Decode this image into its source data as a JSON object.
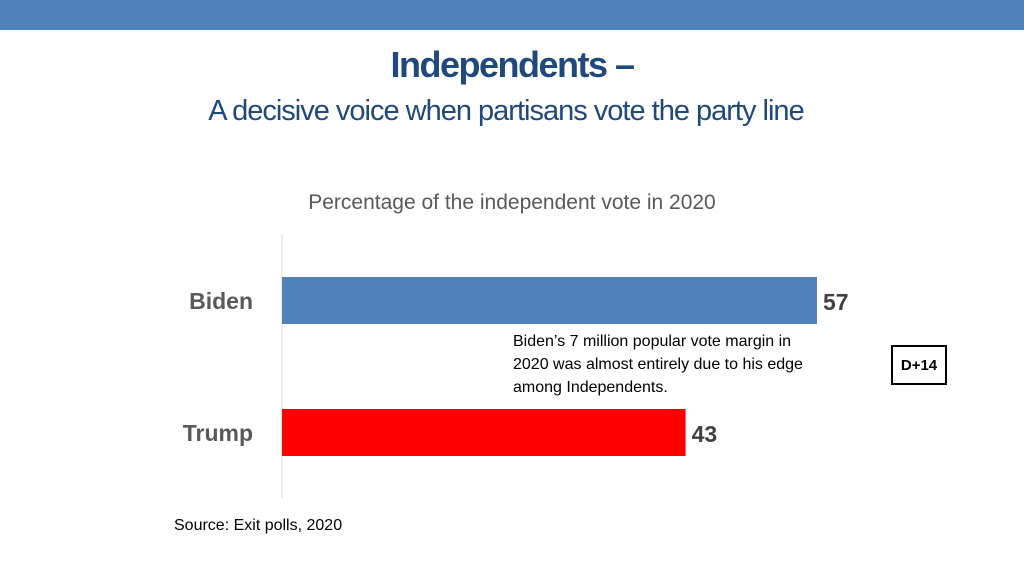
{
  "header": {
    "title": "Independents –",
    "subtitle": "A decisive voice when partisans vote the party line"
  },
  "colors": {
    "band": "#4f81bd",
    "title": "#1f497d",
    "biden_bar": "#4f81bd",
    "trump_bar": "#ff0000"
  },
  "chart_data": {
    "type": "bar",
    "orientation": "horizontal",
    "title": "Percentage of the independent vote in 2020",
    "categories": [
      "Biden",
      "Trump"
    ],
    "values": [
      57,
      43
    ],
    "bar_colors": [
      "#4f81bd",
      "#ff0000"
    ],
    "xlabel": "",
    "ylabel": "",
    "xlim": [
      0,
      57
    ],
    "grid": false,
    "data_labels": true
  },
  "annotation": {
    "callout_text": "Biden’s 7 million popular vote margin in 2020 was almost entirely due to his edge among Independents.",
    "badge": "D+14"
  },
  "footer": {
    "source": "Source: Exit polls, 2020"
  }
}
